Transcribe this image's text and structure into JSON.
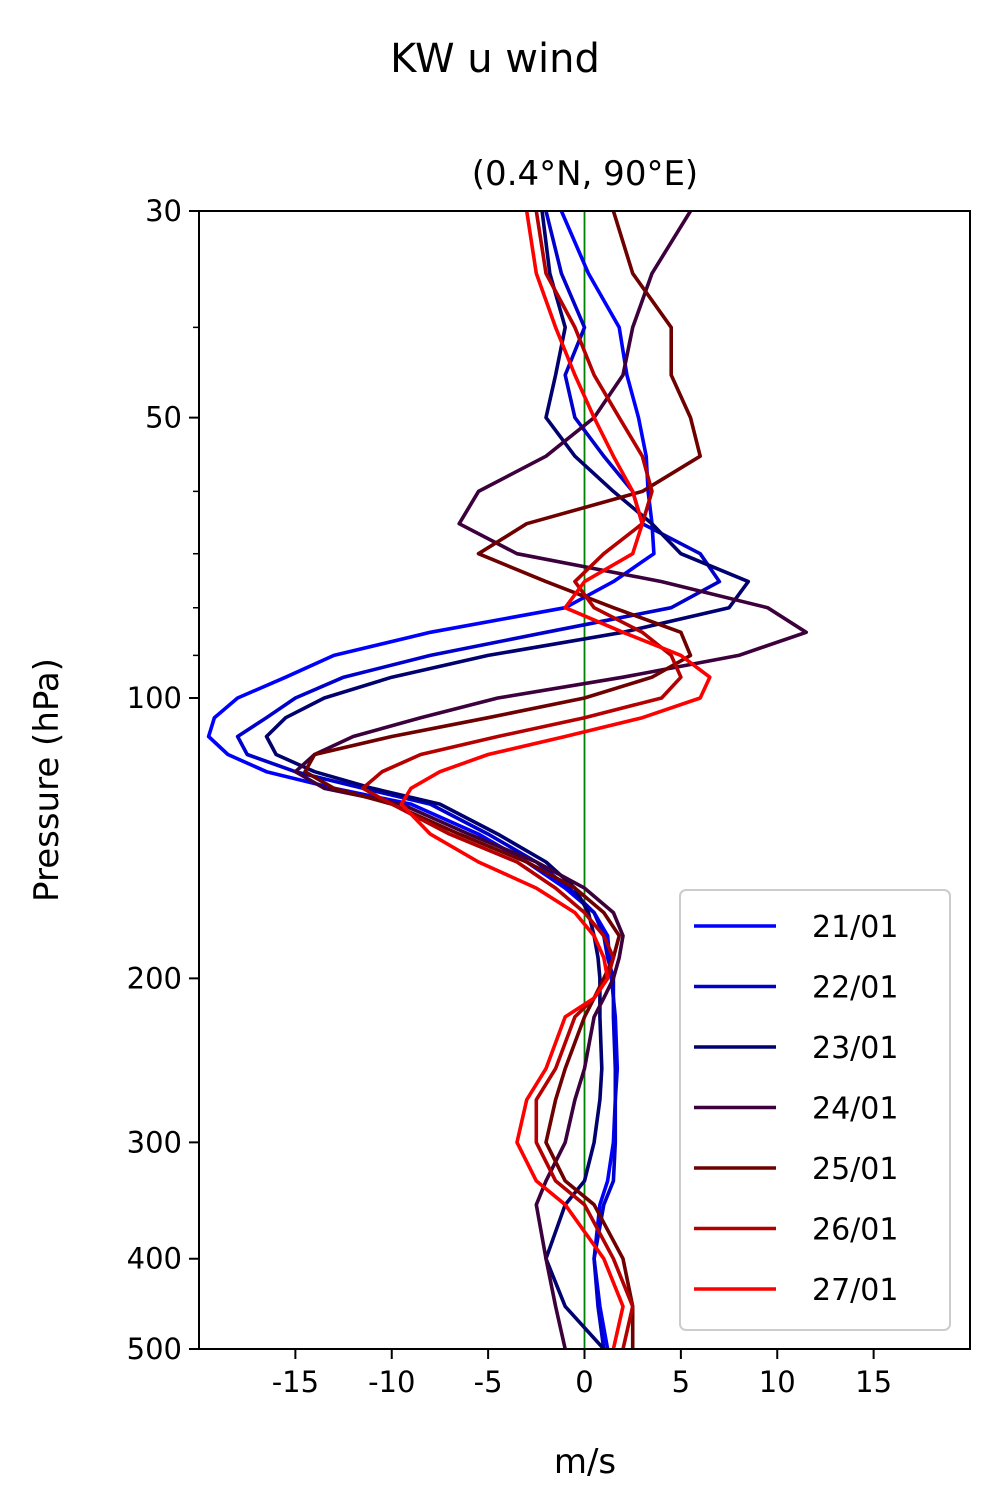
{
  "chart_data": {
    "type": "line",
    "suptitle": "KW u wind",
    "title": "(0.4°N, 90°E)",
    "xlabel": "m/s",
    "ylabel": "Pressure (hPa)",
    "xlim": [
      -20,
      20
    ],
    "ylim": [
      500,
      30
    ],
    "yscale": "log",
    "xticks": [
      -15,
      -10,
      -5,
      0,
      5,
      10,
      15
    ],
    "xtick_labels": [
      "-15",
      "-10",
      "-5",
      "0",
      "5",
      "10",
      "15"
    ],
    "yticks": [
      30,
      50,
      100,
      200,
      300,
      400,
      500
    ],
    "ytick_labels": [
      "30",
      "50",
      "100",
      "200",
      "300",
      "400",
      "500"
    ],
    "yminor_ticks": [
      40,
      60,
      70,
      80,
      90
    ],
    "reference_line": {
      "x": 0,
      "color": "#008000"
    },
    "grid": false,
    "legend_position": "lower-right",
    "pressure_levels": [
      30,
      35,
      40,
      45,
      50,
      55,
      60,
      65,
      70,
      75,
      80,
      85,
      90,
      95,
      100,
      105,
      110,
      115,
      120,
      125,
      130,
      140,
      150,
      160,
      170,
      180,
      190,
      200,
      210,
      220,
      250,
      270,
      300,
      330,
      350,
      400,
      450,
      500
    ],
    "series": [
      {
        "name": "21/01",
        "color": "#0000ff",
        "values": [
          -1.2,
          0.2,
          1.8,
          2.2,
          2.8,
          3.2,
          3.3,
          3.5,
          3.6,
          1.5,
          -1.0,
          -8.0,
          -13.0,
          -15.5,
          -18.0,
          -19.2,
          -19.5,
          -18.5,
          -16.5,
          -13.0,
          -9.0,
          -5.5,
          -3.0,
          -1.0,
          0.5,
          1.2,
          1.3,
          1.4,
          1.5,
          1.6,
          1.7,
          1.6,
          1.5,
          1.2,
          0.8,
          0.5,
          0.8,
          1.2
        ]
      },
      {
        "name": "22/01",
        "color": "#0000cc",
        "values": [
          -2.0,
          -1.2,
          0.0,
          -1.0,
          -0.5,
          1.0,
          2.5,
          3.0,
          6.0,
          7.0,
          4.5,
          -2.0,
          -8.0,
          -12.5,
          -15.0,
          -16.5,
          -18.0,
          -17.5,
          -15.0,
          -11.5,
          -8.0,
          -5.0,
          -2.5,
          -0.8,
          0.5,
          1.0,
          1.2,
          1.5,
          1.5,
          1.5,
          1.6,
          1.6,
          1.6,
          1.5,
          1.0,
          0.5,
          0.7,
          1.0
        ]
      },
      {
        "name": "23/01",
        "color": "#00006e",
        "values": [
          -2.2,
          -1.8,
          -1.0,
          -1.5,
          -2.0,
          -0.5,
          1.5,
          3.5,
          5.0,
          8.5,
          7.5,
          2.0,
          -5.0,
          -10.0,
          -13.5,
          -15.5,
          -16.5,
          -16.0,
          -14.0,
          -11.0,
          -7.5,
          -4.5,
          -2.0,
          -0.5,
          0.2,
          0.5,
          0.7,
          0.8,
          0.8,
          0.8,
          0.9,
          0.8,
          0.5,
          0.0,
          -1.0,
          -2.0,
          -1.0,
          1.0
        ]
      },
      {
        "name": "24/01",
        "color": "#3c003c",
        "values": [
          5.5,
          3.5,
          2.5,
          2.0,
          0.5,
          -2.0,
          -5.5,
          -6.5,
          -3.5,
          4.0,
          9.5,
          11.5,
          8.0,
          2.0,
          -4.5,
          -8.5,
          -12.0,
          -14.0,
          -15.0,
          -13.5,
          -9.5,
          -6.0,
          -2.5,
          0.0,
          1.5,
          2.0,
          1.8,
          1.5,
          1.0,
          0.5,
          0.0,
          -0.5,
          -1.0,
          -2.0,
          -2.5,
          -2.0,
          -1.5,
          -1.0
        ]
      },
      {
        "name": "25/01",
        "color": "#6e0000",
        "values": [
          1.5,
          2.5,
          4.5,
          4.5,
          5.5,
          6.0,
          3.0,
          -3.0,
          -5.5,
          -2.0,
          1.5,
          5.0,
          5.5,
          3.5,
          0.0,
          -5.0,
          -10.0,
          -14.0,
          -14.5,
          -13.0,
          -10.0,
          -6.5,
          -3.0,
          -0.5,
          1.0,
          1.8,
          1.5,
          1.0,
          0.5,
          0.0,
          -1.0,
          -1.5,
          -2.0,
          -1.0,
          0.5,
          2.0,
          2.5,
          2.5
        ]
      },
      {
        "name": "26/01",
        "color": "#b40000",
        "values": [
          -2.5,
          -2.0,
          -0.5,
          0.5,
          1.8,
          3.0,
          3.5,
          3.0,
          1.0,
          -0.5,
          0.5,
          3.0,
          4.5,
          5.0,
          4.0,
          0.0,
          -4.5,
          -8.5,
          -10.5,
          -11.5,
          -10.0,
          -7.0,
          -3.5,
          -1.5,
          0.0,
          1.0,
          1.5,
          1.2,
          0.5,
          -0.5,
          -1.5,
          -2.5,
          -2.5,
          -1.5,
          0.0,
          1.5,
          2.5,
          2.0
        ]
      },
      {
        "name": "27/01",
        "color": "#ff0000",
        "values": [
          -3.0,
          -2.5,
          -1.5,
          -0.5,
          0.5,
          1.5,
          2.5,
          3.0,
          2.5,
          0.0,
          -1.0,
          2.0,
          5.0,
          6.5,
          6.0,
          3.0,
          -1.0,
          -5.0,
          -7.5,
          -9.0,
          -9.5,
          -8.0,
          -5.5,
          -2.5,
          -0.5,
          0.5,
          1.0,
          1.2,
          0.5,
          -1.0,
          -2.0,
          -3.0,
          -3.5,
          -2.5,
          -1.0,
          1.0,
          2.0,
          1.5
        ]
      }
    ]
  }
}
